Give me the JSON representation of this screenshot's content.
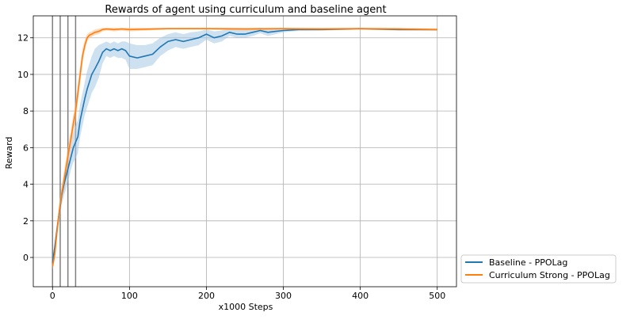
{
  "chart_data": {
    "type": "line",
    "title": "Rewards of agent using curriculum and baseline agent",
    "xlabel": "x1000 Steps",
    "ylabel": "Reward",
    "xlim": [
      -25,
      525
    ],
    "ylim": [
      -1.6,
      13.2
    ],
    "xticks": [
      0,
      100,
      200,
      300,
      400,
      500
    ],
    "yticks": [
      0,
      2,
      4,
      6,
      8,
      10,
      12
    ],
    "grid": true,
    "vertical_markers": [
      0,
      10,
      20,
      30
    ],
    "legend_position": "outside-lower-right",
    "series": [
      {
        "name": "Baseline - PPOLag",
        "color": "#1f77b4",
        "band_color": "#a6c8e5",
        "x": [
          0,
          3,
          6,
          9,
          12,
          15,
          18,
          21,
          24,
          27,
          30,
          33,
          36,
          39,
          42,
          45,
          48,
          51,
          55,
          60,
          65,
          70,
          75,
          80,
          85,
          90,
          95,
          100,
          110,
          120,
          130,
          140,
          150,
          160,
          170,
          180,
          190,
          200,
          210,
          220,
          230,
          240,
          250,
          260,
          270,
          280,
          290,
          300,
          320,
          350,
          400,
          450,
          500
        ],
        "mean": [
          -0.3,
          0.6,
          1.6,
          2.5,
          3.4,
          4.0,
          4.5,
          5.0,
          5.5,
          6.0,
          6.3,
          6.6,
          7.5,
          8.1,
          8.7,
          9.2,
          9.6,
          10.0,
          10.3,
          10.7,
          11.2,
          11.4,
          11.3,
          11.4,
          11.3,
          11.4,
          11.3,
          11.0,
          10.9,
          11.0,
          11.1,
          11.5,
          11.8,
          11.9,
          11.8,
          11.9,
          12.0,
          12.2,
          12.0,
          12.1,
          12.3,
          12.2,
          12.2,
          12.3,
          12.4,
          12.3,
          12.35,
          12.4,
          12.45,
          12.45,
          12.5,
          12.45,
          12.45
        ],
        "upper": [
          -0.1,
          0.9,
          2.0,
          3.0,
          3.9,
          4.6,
          5.2,
          5.7,
          6.2,
          6.8,
          7.2,
          7.5,
          8.4,
          9.0,
          9.6,
          10.2,
          10.6,
          11.0,
          11.4,
          11.6,
          11.7,
          11.8,
          11.7,
          11.8,
          11.7,
          11.8,
          11.8,
          11.7,
          11.6,
          11.6,
          11.7,
          12.0,
          12.2,
          12.3,
          12.2,
          12.3,
          12.35,
          12.45,
          12.35,
          12.4,
          12.5,
          12.45,
          12.45,
          12.5,
          12.55,
          12.5,
          12.5,
          12.52,
          12.52,
          12.5,
          12.55,
          12.5,
          12.5
        ],
        "lower": [
          -0.5,
          0.3,
          1.2,
          2.0,
          2.9,
          3.4,
          3.8,
          4.3,
          4.8,
          5.2,
          5.4,
          5.7,
          6.6,
          7.2,
          7.8,
          8.2,
          8.6,
          9.0,
          9.3,
          9.8,
          10.6,
          11.0,
          10.9,
          11.0,
          10.9,
          10.9,
          10.8,
          10.3,
          10.3,
          10.4,
          10.5,
          11.0,
          11.3,
          11.5,
          11.4,
          11.5,
          11.6,
          11.9,
          11.7,
          11.8,
          12.1,
          12.0,
          12.0,
          12.1,
          12.25,
          12.1,
          12.2,
          12.3,
          12.38,
          12.4,
          12.45,
          12.4,
          12.4
        ]
      },
      {
        "name": "Curriculum Strong - PPOLag",
        "color": "#ff7f0e",
        "band_color": "#ffc08a",
        "x": [
          0,
          3,
          6,
          9,
          12,
          15,
          18,
          21,
          24,
          27,
          30,
          33,
          36,
          39,
          42,
          45,
          48,
          51,
          55,
          60,
          65,
          70,
          80,
          90,
          100,
          150,
          200,
          250,
          300,
          350,
          400,
          450,
          500
        ],
        "mean": [
          -0.5,
          0.2,
          1.5,
          2.6,
          3.5,
          4.2,
          5.0,
          5.8,
          6.5,
          7.3,
          8.0,
          9.0,
          10.0,
          11.0,
          11.6,
          12.0,
          12.15,
          12.2,
          12.3,
          12.35,
          12.45,
          12.48,
          12.45,
          12.48,
          12.45,
          12.5,
          12.5,
          12.48,
          12.5,
          12.48,
          12.5,
          12.48,
          12.45
        ],
        "upper": [
          -0.3,
          0.5,
          1.9,
          3.0,
          3.9,
          4.7,
          5.5,
          6.3,
          7.0,
          7.8,
          8.5,
          9.5,
          10.5,
          11.4,
          11.9,
          12.2,
          12.3,
          12.35,
          12.45,
          12.5,
          12.55,
          12.55,
          12.55,
          12.55,
          12.55,
          12.55,
          12.55,
          12.55,
          12.55,
          12.55,
          12.55,
          12.55,
          12.52
        ],
        "lower": [
          -0.7,
          -0.1,
          1.1,
          2.2,
          3.1,
          3.7,
          4.5,
          5.3,
          6.0,
          6.8,
          7.5,
          8.5,
          9.5,
          10.6,
          11.3,
          11.8,
          12.0,
          12.05,
          12.15,
          12.2,
          12.35,
          12.4,
          12.35,
          12.4,
          12.35,
          12.45,
          12.45,
          12.4,
          12.45,
          12.4,
          12.45,
          12.4,
          12.38
        ]
      }
    ]
  }
}
